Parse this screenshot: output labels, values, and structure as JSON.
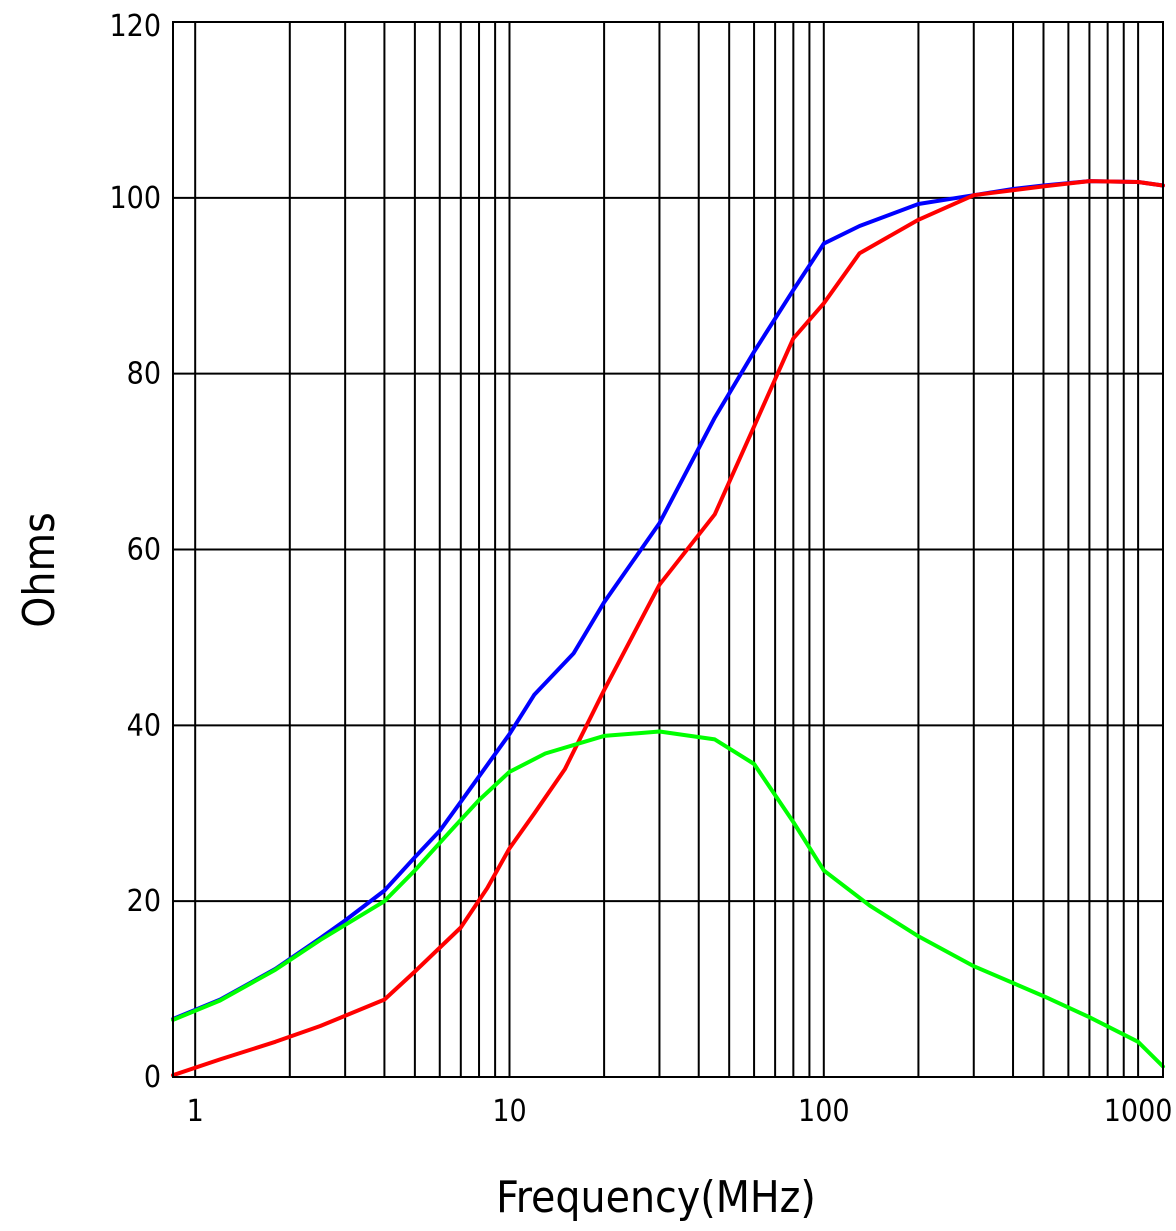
{
  "chart_data": {
    "type": "line",
    "title": "",
    "xlabel": "Frequency(MHz)",
    "ylabel": "Ohms",
    "x_scale": "log",
    "xlim": [
      0.85,
      1200
    ],
    "ylim": [
      0,
      120
    ],
    "grid": true,
    "legend": "none",
    "x_ticks": [
      1,
      10,
      100,
      1000
    ],
    "x_tick_labels": [
      "1",
      "10",
      "100",
      "1000"
    ],
    "y_ticks": [
      0,
      20,
      40,
      60,
      80,
      100,
      120
    ],
    "y_tick_labels": [
      "0",
      "20",
      "40",
      "60",
      "80",
      "100",
      "120"
    ],
    "x_minor_gridlines": [
      2,
      3,
      4,
      5,
      6,
      7,
      8,
      9,
      20,
      30,
      40,
      50,
      60,
      70,
      80,
      90,
      200,
      300,
      400,
      500,
      600,
      700,
      800,
      900
    ],
    "series": [
      {
        "color": "#0000ff",
        "points": [
          [
            0.85,
            6.6
          ],
          [
            1.2,
            8.8
          ],
          [
            1.8,
            12.3
          ],
          [
            2.5,
            15.8
          ],
          [
            3,
            17.8
          ],
          [
            4,
            21.2
          ],
          [
            5,
            25.0
          ],
          [
            6,
            28.0
          ],
          [
            7,
            31.3
          ],
          [
            8.5,
            35.5
          ],
          [
            10,
            39.0
          ],
          [
            12,
            43.5
          ],
          [
            16,
            48.2
          ],
          [
            20,
            54.0
          ],
          [
            30,
            63.0
          ],
          [
            45,
            75.0
          ],
          [
            60,
            82.5
          ],
          [
            80,
            89.5
          ],
          [
            100,
            94.8
          ],
          [
            130,
            96.8
          ],
          [
            200,
            99.3
          ],
          [
            300,
            100.3
          ],
          [
            400,
            101.0
          ],
          [
            500,
            101.4
          ],
          [
            700,
            101.9
          ],
          [
            1000,
            101.8
          ],
          [
            1200,
            101.4
          ]
        ]
      },
      {
        "color": "#ff0000",
        "points": [
          [
            0.85,
            0.2
          ],
          [
            1.2,
            2.0
          ],
          [
            1.8,
            4.0
          ],
          [
            2.5,
            5.8
          ],
          [
            4,
            8.8
          ],
          [
            5,
            12.0
          ],
          [
            7,
            17.0
          ],
          [
            8.5,
            21.5
          ],
          [
            10,
            26.0
          ],
          [
            12,
            30.0
          ],
          [
            15,
            35.0
          ],
          [
            20,
            44.0
          ],
          [
            30,
            56.0
          ],
          [
            45,
            64.0
          ],
          [
            60,
            74.0
          ],
          [
            80,
            84.0
          ],
          [
            100,
            88.0
          ],
          [
            130,
            93.7
          ],
          [
            200,
            97.5
          ],
          [
            300,
            100.3
          ],
          [
            500,
            101.3
          ],
          [
            700,
            101.9
          ],
          [
            1000,
            101.8
          ],
          [
            1200,
            101.4
          ]
        ]
      },
      {
        "color": "#00ff00",
        "points": [
          [
            0.85,
            6.5
          ],
          [
            1.2,
            8.7
          ],
          [
            1.8,
            12.2
          ],
          [
            2.5,
            15.6
          ],
          [
            4,
            20.0
          ],
          [
            5,
            23.5
          ],
          [
            6.5,
            28.0
          ],
          [
            8,
            31.5
          ],
          [
            10,
            34.7
          ],
          [
            13,
            36.8
          ],
          [
            20,
            38.8
          ],
          [
            30,
            39.3
          ],
          [
            45,
            38.4
          ],
          [
            60,
            35.6
          ],
          [
            80,
            29.0
          ],
          [
            100,
            23.5
          ],
          [
            140,
            19.5
          ],
          [
            200,
            16.0
          ],
          [
            300,
            12.6
          ],
          [
            500,
            9.2
          ],
          [
            700,
            6.8
          ],
          [
            1000,
            4.0
          ],
          [
            1200,
            1.2
          ]
        ]
      }
    ]
  }
}
